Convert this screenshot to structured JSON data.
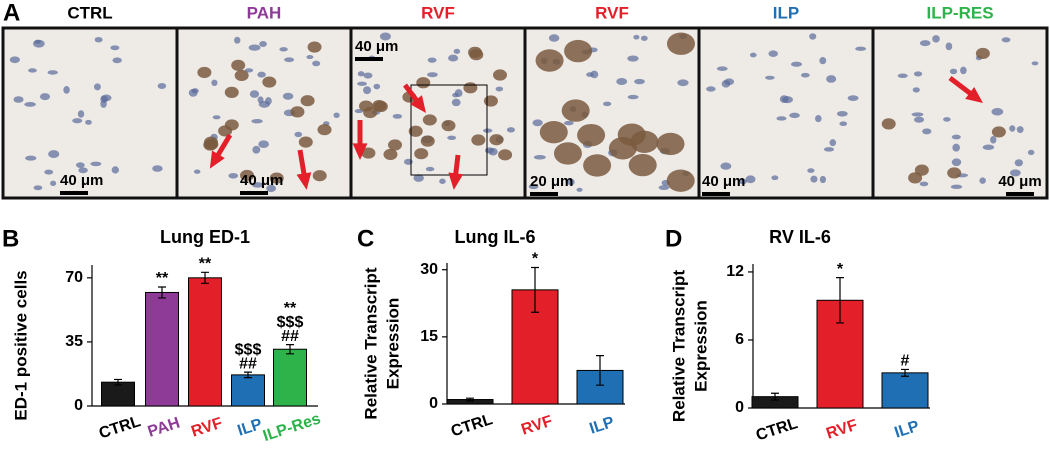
{
  "panel_a": {
    "letter": "A",
    "panels": [
      {
        "label": "CTRL",
        "color": "#000000",
        "scale": "40 μm"
      },
      {
        "label": "PAH",
        "color": "#8e3a97",
        "scale": "40 μm"
      },
      {
        "label": "RVF",
        "color": "#e3202a",
        "scale": "40 μm"
      },
      {
        "label": "RVF",
        "color": "#e3202a",
        "scale": "20 μm"
      },
      {
        "label": "ILP",
        "color": "#1f6fb5",
        "scale": "40 μm"
      },
      {
        "label": "ILP-RES",
        "color": "#2db34a",
        "scale": "40 μm"
      }
    ]
  },
  "chart_data": [
    {
      "type": "bar",
      "letter": "B",
      "title": "Lung ED-1",
      "ylabel": [
        "ED-1 positive cells"
      ],
      "categories": [
        "CTRL",
        "PAH",
        "RVF",
        "ILP",
        "ILP-Res"
      ],
      "label_colors": [
        "#000000",
        "#8e3a97",
        "#e3202a",
        "#1f6fb5",
        "#2db34a"
      ],
      "colors": [
        "#1a1a1a",
        "#8e3a97",
        "#e3202a",
        "#1f6fb5",
        "#2db34a"
      ],
      "values": [
        13,
        62,
        70,
        17,
        31
      ],
      "errors": [
        1.5,
        3,
        3,
        1.5,
        2.5
      ],
      "annotations": [
        [],
        [
          "**"
        ],
        [
          "**"
        ],
        [
          "$$$",
          "##"
        ],
        [
          "**",
          "$$$",
          "##"
        ]
      ],
      "ylim": [
        0,
        77
      ],
      "yticks": [
        0,
        35,
        70
      ]
    },
    {
      "type": "bar",
      "letter": "C",
      "title": "Lung IL-6",
      "ylabel": [
        "Relative Transcript",
        "Expression"
      ],
      "categories": [
        "CTRL",
        "RVF",
        "ILP"
      ],
      "label_colors": [
        "#000000",
        "#e3202a",
        "#1f6fb5"
      ],
      "colors": [
        "#1a1a1a",
        "#e3202a",
        "#1f6fb5"
      ],
      "values": [
        1,
        25.5,
        7.5
      ],
      "errors": [
        0.3,
        5,
        3.3
      ],
      "annotations": [
        [],
        [
          "*"
        ],
        []
      ],
      "ylim": [
        0,
        31.5
      ],
      "yticks": [
        0,
        15,
        30
      ]
    },
    {
      "type": "bar",
      "letter": "D",
      "title": "RV IL-6",
      "ylabel": [
        "Relative Transcript",
        "Expression"
      ],
      "categories": [
        "CTRL",
        "RVF",
        "ILP"
      ],
      "label_colors": [
        "#000000",
        "#e3202a",
        "#1f6fb5"
      ],
      "colors": [
        "#1a1a1a",
        "#e3202a",
        "#1f6fb5"
      ],
      "values": [
        1,
        9.5,
        3.1
      ],
      "errors": [
        0.3,
        2,
        0.3
      ],
      "annotations": [
        [],
        [
          "*"
        ],
        [
          "#"
        ]
      ],
      "ylim": [
        0,
        12.7
      ],
      "yticks": [
        0,
        6,
        12
      ]
    }
  ]
}
